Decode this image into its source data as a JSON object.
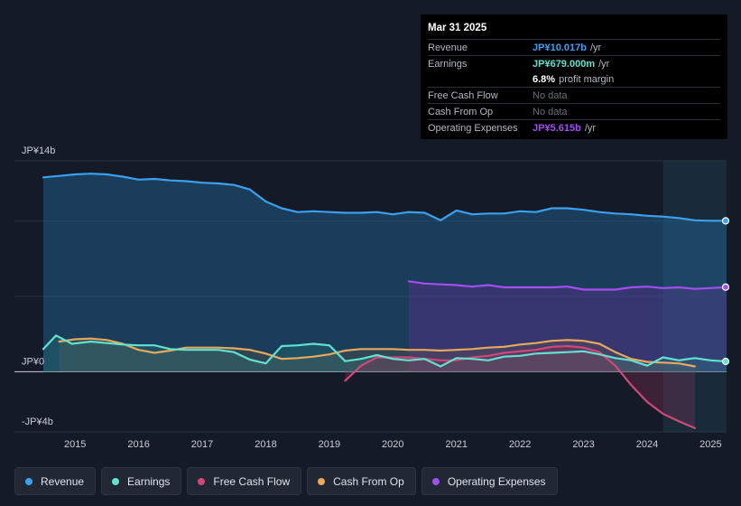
{
  "tooltip": {
    "date": "Mar 31 2025",
    "rows": [
      {
        "label": "Revenue",
        "value": "JP¥10.017b",
        "suffix": "/yr"
      },
      {
        "label": "Earnings",
        "value": "JP¥679.000m",
        "suffix": "/yr"
      },
      {
        "label": "",
        "value": "6.8%",
        "suffix": "profit margin"
      },
      {
        "label": "Free Cash Flow",
        "value": "No data",
        "suffix": ""
      },
      {
        "label": "Cash From Op",
        "value": "No data",
        "suffix": ""
      },
      {
        "label": "Operating Expenses",
        "value": "JP¥5.615b",
        "suffix": "/yr"
      }
    ]
  },
  "legend": [
    {
      "label": "Revenue",
      "color": "#3aa0f0"
    },
    {
      "label": "Earnings",
      "color": "#5fe3d0"
    },
    {
      "label": "Free Cash Flow",
      "color": "#d0487a"
    },
    {
      "label": "Cash From Op",
      "color": "#e8a95a"
    },
    {
      "label": "Operating Expenses",
      "color": "#a24ff0"
    }
  ],
  "chart_data": {
    "type": "area",
    "title": "",
    "y_tick_labels": [
      "JP¥14b",
      "JP¥0",
      "-JP¥4b"
    ],
    "ylim": [
      -4,
      14
    ],
    "xlim": [
      2014.5,
      2025.25
    ],
    "x_ticks": [
      "2015",
      "2016",
      "2017",
      "2018",
      "2019",
      "2020",
      "2021",
      "2022",
      "2023",
      "2024",
      "2025"
    ],
    "grid": true,
    "series": [
      {
        "name": "Revenue",
        "color": "#3aa0f0",
        "points": [
          [
            2014.5,
            12.9
          ],
          [
            2014.75,
            13.0
          ],
          [
            2015.0,
            13.1
          ],
          [
            2015.25,
            13.15
          ],
          [
            2015.5,
            13.1
          ],
          [
            2015.75,
            12.95
          ],
          [
            2016.0,
            12.75
          ],
          [
            2016.25,
            12.8
          ],
          [
            2016.5,
            12.7
          ],
          [
            2016.75,
            12.65
          ],
          [
            2017.0,
            12.55
          ],
          [
            2017.25,
            12.5
          ],
          [
            2017.5,
            12.4
          ],
          [
            2017.75,
            12.1
          ],
          [
            2018.0,
            11.3
          ],
          [
            2018.25,
            10.85
          ],
          [
            2018.5,
            10.6
          ],
          [
            2018.75,
            10.65
          ],
          [
            2019.0,
            10.6
          ],
          [
            2019.25,
            10.55
          ],
          [
            2019.5,
            10.55
          ],
          [
            2019.75,
            10.6
          ],
          [
            2020.0,
            10.45
          ],
          [
            2020.25,
            10.6
          ],
          [
            2020.5,
            10.55
          ],
          [
            2020.75,
            10.05
          ],
          [
            2021.0,
            10.7
          ],
          [
            2021.25,
            10.45
          ],
          [
            2021.5,
            10.5
          ],
          [
            2021.75,
            10.5
          ],
          [
            2022.0,
            10.65
          ],
          [
            2022.25,
            10.6
          ],
          [
            2022.5,
            10.85
          ],
          [
            2022.75,
            10.85
          ],
          [
            2023.0,
            10.75
          ],
          [
            2023.25,
            10.6
          ],
          [
            2023.5,
            10.5
          ],
          [
            2023.75,
            10.45
          ],
          [
            2024.0,
            10.35
          ],
          [
            2024.25,
            10.3
          ],
          [
            2024.5,
            10.2
          ],
          [
            2024.75,
            10.05
          ],
          [
            2025.0,
            10.02
          ],
          [
            2025.25,
            10.017
          ]
        ]
      },
      {
        "name": "Earnings",
        "color": "#5fe3d0",
        "points": [
          [
            2014.5,
            1.5
          ],
          [
            2014.7,
            2.4
          ],
          [
            2014.95,
            1.85
          ],
          [
            2015.25,
            2.0
          ],
          [
            2015.5,
            1.9
          ],
          [
            2015.75,
            1.8
          ],
          [
            2016.0,
            1.75
          ],
          [
            2016.25,
            1.75
          ],
          [
            2016.5,
            1.5
          ],
          [
            2016.75,
            1.45
          ],
          [
            2017.0,
            1.45
          ],
          [
            2017.25,
            1.45
          ],
          [
            2017.5,
            1.3
          ],
          [
            2017.75,
            0.8
          ],
          [
            2018.0,
            0.55
          ],
          [
            2018.25,
            1.7
          ],
          [
            2018.5,
            1.75
          ],
          [
            2018.75,
            1.85
          ],
          [
            2019.0,
            1.75
          ],
          [
            2019.25,
            0.7
          ],
          [
            2019.5,
            0.85
          ],
          [
            2019.75,
            1.1
          ],
          [
            2020.0,
            0.85
          ],
          [
            2020.25,
            0.75
          ],
          [
            2020.5,
            0.85
          ],
          [
            2020.75,
            0.35
          ],
          [
            2021.0,
            0.9
          ],
          [
            2021.25,
            0.85
          ],
          [
            2021.5,
            0.75
          ],
          [
            2021.75,
            1.0
          ],
          [
            2022.0,
            1.05
          ],
          [
            2022.25,
            1.2
          ],
          [
            2022.5,
            1.25
          ],
          [
            2022.75,
            1.3
          ],
          [
            2023.0,
            1.35
          ],
          [
            2023.25,
            1.15
          ],
          [
            2023.5,
            0.9
          ],
          [
            2023.75,
            0.75
          ],
          [
            2024.0,
            0.4
          ],
          [
            2024.25,
            0.95
          ],
          [
            2024.5,
            0.75
          ],
          [
            2024.75,
            0.9
          ],
          [
            2025.0,
            0.75
          ],
          [
            2025.25,
            0.679
          ]
        ]
      },
      {
        "name": "Free Cash Flow",
        "color": "#d0487a",
        "points": [
          [
            2019.25,
            -0.6
          ],
          [
            2019.5,
            0.4
          ],
          [
            2019.75,
            0.95
          ],
          [
            2020.0,
            0.95
          ],
          [
            2020.25,
            0.95
          ],
          [
            2020.5,
            0.85
          ],
          [
            2020.75,
            0.75
          ],
          [
            2021.0,
            0.75
          ],
          [
            2021.25,
            0.95
          ],
          [
            2021.5,
            1.05
          ],
          [
            2021.75,
            1.25
          ],
          [
            2022.0,
            1.35
          ],
          [
            2022.25,
            1.45
          ],
          [
            2022.5,
            1.65
          ],
          [
            2022.75,
            1.7
          ],
          [
            2023.0,
            1.6
          ],
          [
            2023.25,
            1.3
          ],
          [
            2023.5,
            0.4
          ],
          [
            2023.75,
            -0.9
          ],
          [
            2024.0,
            -2.0
          ],
          [
            2024.25,
            -2.8
          ],
          [
            2024.5,
            -3.3
          ],
          [
            2024.75,
            -3.75
          ]
        ]
      },
      {
        "name": "Cash From Op",
        "color": "#e8a95a",
        "points": [
          [
            2014.75,
            2.0
          ],
          [
            2015.0,
            2.15
          ],
          [
            2015.25,
            2.2
          ],
          [
            2015.5,
            2.1
          ],
          [
            2015.75,
            1.85
          ],
          [
            2016.0,
            1.45
          ],
          [
            2016.25,
            1.25
          ],
          [
            2016.5,
            1.4
          ],
          [
            2016.75,
            1.6
          ],
          [
            2017.0,
            1.6
          ],
          [
            2017.25,
            1.6
          ],
          [
            2017.5,
            1.55
          ],
          [
            2017.75,
            1.45
          ],
          [
            2018.0,
            1.2
          ],
          [
            2018.25,
            0.85
          ],
          [
            2018.5,
            0.9
          ],
          [
            2018.75,
            1.0
          ],
          [
            2019.0,
            1.15
          ],
          [
            2019.25,
            1.4
          ],
          [
            2019.5,
            1.5
          ],
          [
            2019.75,
            1.5
          ],
          [
            2020.0,
            1.5
          ],
          [
            2020.25,
            1.45
          ],
          [
            2020.5,
            1.45
          ],
          [
            2020.75,
            1.4
          ],
          [
            2021.0,
            1.45
          ],
          [
            2021.25,
            1.5
          ],
          [
            2021.5,
            1.6
          ],
          [
            2021.75,
            1.65
          ],
          [
            2022.0,
            1.8
          ],
          [
            2022.25,
            1.9
          ],
          [
            2022.5,
            2.05
          ],
          [
            2022.75,
            2.1
          ],
          [
            2023.0,
            2.05
          ],
          [
            2023.25,
            1.85
          ],
          [
            2023.5,
            1.3
          ],
          [
            2023.75,
            0.85
          ],
          [
            2024.0,
            0.65
          ],
          [
            2024.25,
            0.6
          ],
          [
            2024.5,
            0.55
          ],
          [
            2024.75,
            0.35
          ]
        ]
      },
      {
        "name": "Operating Expenses",
        "color": "#a24ff0",
        "points": [
          [
            2020.25,
            6.0
          ],
          [
            2020.5,
            5.85
          ],
          [
            2020.75,
            5.8
          ],
          [
            2021.0,
            5.75
          ],
          [
            2021.25,
            5.65
          ],
          [
            2021.5,
            5.75
          ],
          [
            2021.75,
            5.6
          ],
          [
            2022.0,
            5.6
          ],
          [
            2022.25,
            5.6
          ],
          [
            2022.5,
            5.6
          ],
          [
            2022.75,
            5.65
          ],
          [
            2023.0,
            5.45
          ],
          [
            2023.25,
            5.45
          ],
          [
            2023.5,
            5.45
          ],
          [
            2023.75,
            5.6
          ],
          [
            2024.0,
            5.65
          ],
          [
            2024.25,
            5.55
          ],
          [
            2024.5,
            5.6
          ],
          [
            2024.75,
            5.5
          ],
          [
            2025.0,
            5.55
          ],
          [
            2025.25,
            5.615
          ]
        ]
      }
    ]
  }
}
